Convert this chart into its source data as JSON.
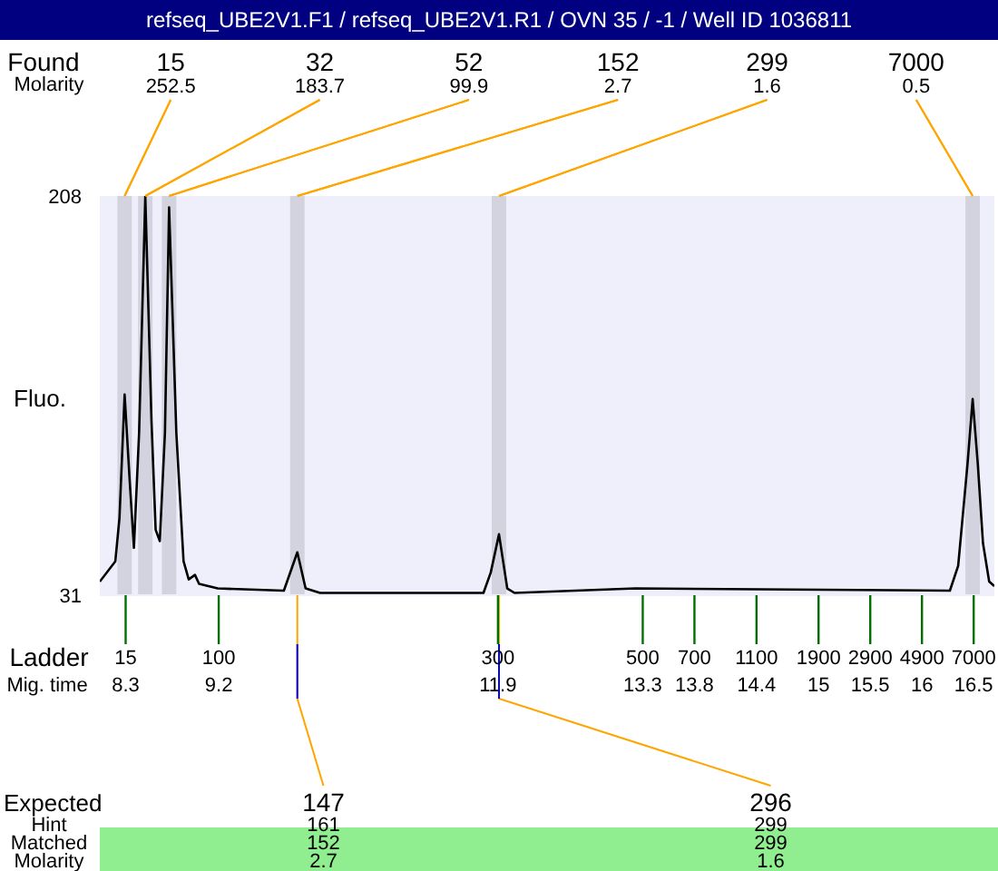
{
  "chart_data": {
    "type": "line",
    "title": "refseq_UBE2V1.F1 / refseq_UBE2V1.R1 / OVN 35 / -1 / Well ID 1036811",
    "xlabel": "Mig. time",
    "ylabel": "Fluo.",
    "xlim": [
      8.05,
      16.7
    ],
    "xticks": [
      8.3,
      9.2,
      11.9,
      13.3,
      13.8,
      14.4,
      15,
      15.5,
      16,
      16.5
    ],
    "ylim": [
      31,
      208
    ],
    "yticks": [
      31,
      208
    ],
    "marker": "none",
    "line_style": "solid",
    "series": [
      {
        "color": "#000000",
        "x": [
          8.05,
          8.2,
          8.24,
          8.29,
          8.34,
          8.38,
          8.43,
          8.49,
          8.55,
          8.59,
          8.63,
          8.68,
          8.72,
          8.79,
          8.86,
          8.91,
          8.97,
          9.01,
          9.19,
          9.83,
          9.96,
          10.04,
          10.18,
          11.76,
          11.83,
          11.91,
          11.99,
          12.06,
          13.23,
          16.27,
          16.35,
          16.44,
          16.49,
          16.54,
          16.59,
          16.65,
          16.7
        ],
        "values": [
          37,
          46,
          65,
          120,
          81,
          52,
          103,
          208,
          108,
          60,
          55,
          103,
          203,
          103,
          46,
          38,
          40,
          36,
          34,
          33,
          50,
          34,
          32,
          32,
          41,
          58,
          34,
          32,
          34,
          33,
          44,
          89,
          118,
          89,
          54,
          37,
          35
        ]
      }
    ],
    "bands": [
      {
        "axis": "x",
        "from": 8.22,
        "to": 8.36,
        "color": "#d3d3e0"
      },
      {
        "axis": "x",
        "from": 8.42,
        "to": 8.56,
        "color": "#d3d3e0"
      },
      {
        "axis": "x",
        "from": 8.65,
        "to": 8.79,
        "color": "#d3d3e0"
      },
      {
        "axis": "x",
        "from": 9.89,
        "to": 10.03,
        "color": "#d3d3e0"
      },
      {
        "axis": "x",
        "from": 11.84,
        "to": 11.98,
        "color": "#d3d3e0"
      },
      {
        "axis": "x",
        "from": 16.42,
        "to": 16.56,
        "color": "#d3d3e0"
      }
    ],
    "annotations": [
      "Found",
      "Molarity",
      "Ladder",
      "Expected",
      "Hint",
      "Matched",
      "Molarity",
      {
        "text": "15",
        "x": 8.29,
        "y": 208
      },
      {
        "text": "252.5",
        "x": 8.29,
        "y": 208
      },
      {
        "text": "32",
        "x": 8.49,
        "y": 208
      },
      {
        "text": "183.7",
        "x": 8.49,
        "y": 208
      },
      {
        "text": "52",
        "x": 8.72,
        "y": 208
      },
      {
        "text": "99.9",
        "x": 8.72,
        "y": 208
      },
      {
        "text": "152",
        "x": 9.96,
        "y": 208
      },
      {
        "text": "2.7",
        "x": 9.96,
        "y": 208
      },
      {
        "text": "299",
        "x": 11.91,
        "y": 208
      },
      {
        "text": "1.6",
        "x": 11.91,
        "y": 208
      },
      {
        "text": "7000",
        "x": 16.49,
        "y": 208
      },
      {
        "text": "0.5",
        "x": 16.49,
        "y": 208
      },
      {
        "text": "15",
        "x": 8.3,
        "y": 31
      },
      {
        "text": "100",
        "x": 9.2,
        "y": 31
      },
      {
        "text": "300",
        "x": 11.9,
        "y": 31
      },
      {
        "text": "500",
        "x": 13.3,
        "y": 31
      },
      {
        "text": "700",
        "x": 13.8,
        "y": 31
      },
      {
        "text": "1100",
        "x": 14.4,
        "y": 31
      },
      {
        "text": "1900",
        "x": 15,
        "y": 31
      },
      {
        "text": "2900",
        "x": 15.5,
        "y": 31
      },
      {
        "text": "4900",
        "x": 16,
        "y": 31
      },
      {
        "text": "7000",
        "x": 16.5,
        "y": 31
      },
      {
        "text": "147",
        "x": 9.96,
        "y": 31
      },
      "161",
      "152",
      "2.7",
      {
        "text": "296",
        "x": 11.91,
        "y": 31
      },
      "299",
      "299",
      "1.6"
    ]
  }
}
